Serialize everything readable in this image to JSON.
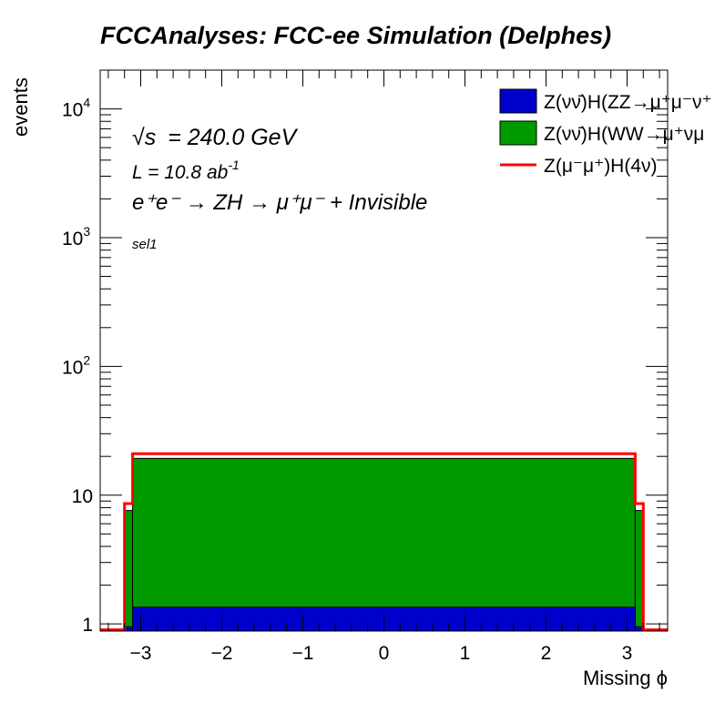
{
  "title": "FCCAnalyses: FCC-ee Simulation (Delphes)",
  "annotations": {
    "sqrt_s_symbol": "√s",
    "energy": "= 240.0 GeV",
    "lumi_text": "L = 10.8 ab",
    "lumi_exp": "-1",
    "process": "e⁺e⁻ → ZH → μ⁺μ⁻ + Invisible",
    "selection": "sel1"
  },
  "colors": {
    "zz": "#0000cc",
    "ww": "#009900",
    "signal": "#ff0000",
    "frame": "#000000"
  },
  "chart_data": {
    "type": "histogram",
    "title": "FCCAnalyses: FCC-ee Simulation (Delphes)",
    "xlabel": "Missing ϕ",
    "ylabel": "events",
    "xlim": [
      -3.5,
      3.5
    ],
    "ylim": [
      0.88,
      20000
    ],
    "yscale": "log",
    "x_ticks": [
      -3,
      -2,
      -1,
      0,
      1,
      2,
      3
    ],
    "x_tick_labels": [
      "−3",
      "−2",
      "−1",
      "0",
      "1",
      "2",
      "3"
    ],
    "y_ticks": [
      {
        "value": 1,
        "base": "1",
        "exp": ""
      },
      {
        "value": 10,
        "base": "10",
        "exp": ""
      },
      {
        "value": 100,
        "base": "10",
        "exp": "2"
      },
      {
        "value": 1000,
        "base": "10",
        "exp": "3"
      },
      {
        "value": 10000,
        "base": "10",
        "exp": "4"
      }
    ],
    "bin_edges_range": [
      -3.5,
      3.5
    ],
    "n_bins": 70,
    "legend_position": "top-right",
    "series": [
      {
        "key": "zz",
        "name": "Z(νν̄)H(ZZ→μ⁺μ⁻ν⁺",
        "style": "filled",
        "stacked": true,
        "segments": [
          {
            "from": -3.5,
            "to": -3.2,
            "value": 0
          },
          {
            "from": -3.2,
            "to": -3.1,
            "value": 0.95
          },
          {
            "from": -3.1,
            "to": 3.1,
            "value": 1.35
          },
          {
            "from": 3.1,
            "to": 3.2,
            "value": 0.95
          },
          {
            "from": 3.2,
            "to": 3.5,
            "value": 0
          }
        ]
      },
      {
        "key": "ww",
        "name": "Z(νν̄)H(WW→μ⁺νμ",
        "style": "filled",
        "stacked": true,
        "segments": [
          {
            "from": -3.5,
            "to": -3.2,
            "value": 0
          },
          {
            "from": -3.2,
            "to": -3.1,
            "value": 7.6
          },
          {
            "from": -3.1,
            "to": 3.1,
            "value": 19.3
          },
          {
            "from": 3.1,
            "to": 3.2,
            "value": 7.6
          },
          {
            "from": 3.2,
            "to": 3.5,
            "value": 0
          }
        ]
      },
      {
        "key": "signal",
        "name": "Z(μ⁻μ⁺)H(4ν)",
        "style": "line",
        "stacked": false,
        "segments": [
          {
            "from": -3.5,
            "to": -3.2,
            "value": 0.9
          },
          {
            "from": -3.2,
            "to": -3.1,
            "value": 8.6
          },
          {
            "from": -3.1,
            "to": 3.1,
            "value": 21.0
          },
          {
            "from": 3.1,
            "to": 3.2,
            "value": 8.6
          },
          {
            "from": 3.2,
            "to": 3.5,
            "value": 0.9
          }
        ]
      }
    ]
  }
}
